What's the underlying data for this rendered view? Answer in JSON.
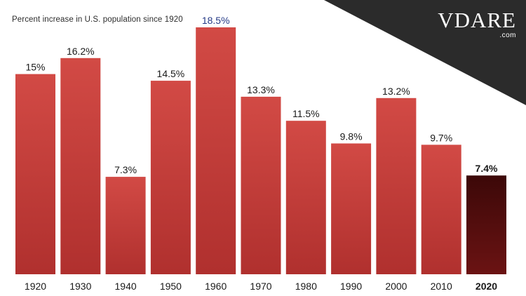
{
  "brand": {
    "logo_text": "VDARE",
    "logo_suffix": ".com",
    "corner_color": "#2b2b2b"
  },
  "chart_data": {
    "type": "bar",
    "title": "",
    "subtitle": "Percent increase in U.S. population since 1920",
    "categories": [
      "1920",
      "1930",
      "1940",
      "1950",
      "1960",
      "1970",
      "1980",
      "1990",
      "2000",
      "2010",
      "2020"
    ],
    "values": [
      15,
      16.2,
      7.3,
      14.5,
      18.5,
      13.3,
      11.5,
      9.8,
      13.2,
      9.7,
      7.4
    ],
    "value_labels": [
      "15%",
      "16.2%",
      "7.3%",
      "14.5%",
      "18.5%",
      "13.3%",
      "11.5%",
      "9.8%",
      "13.2%",
      "9.7%",
      "7.4%"
    ],
    "highlight_category": "2020",
    "colors": {
      "bar": "#c9403d",
      "bar_highlight": "#5a0e0e",
      "label_default": "#1a1a1a",
      "label_peak": "#253a86"
    },
    "ylim": [
      0,
      18.5
    ],
    "xlabel": "",
    "ylabel": "",
    "grid": false,
    "legend": "none"
  }
}
